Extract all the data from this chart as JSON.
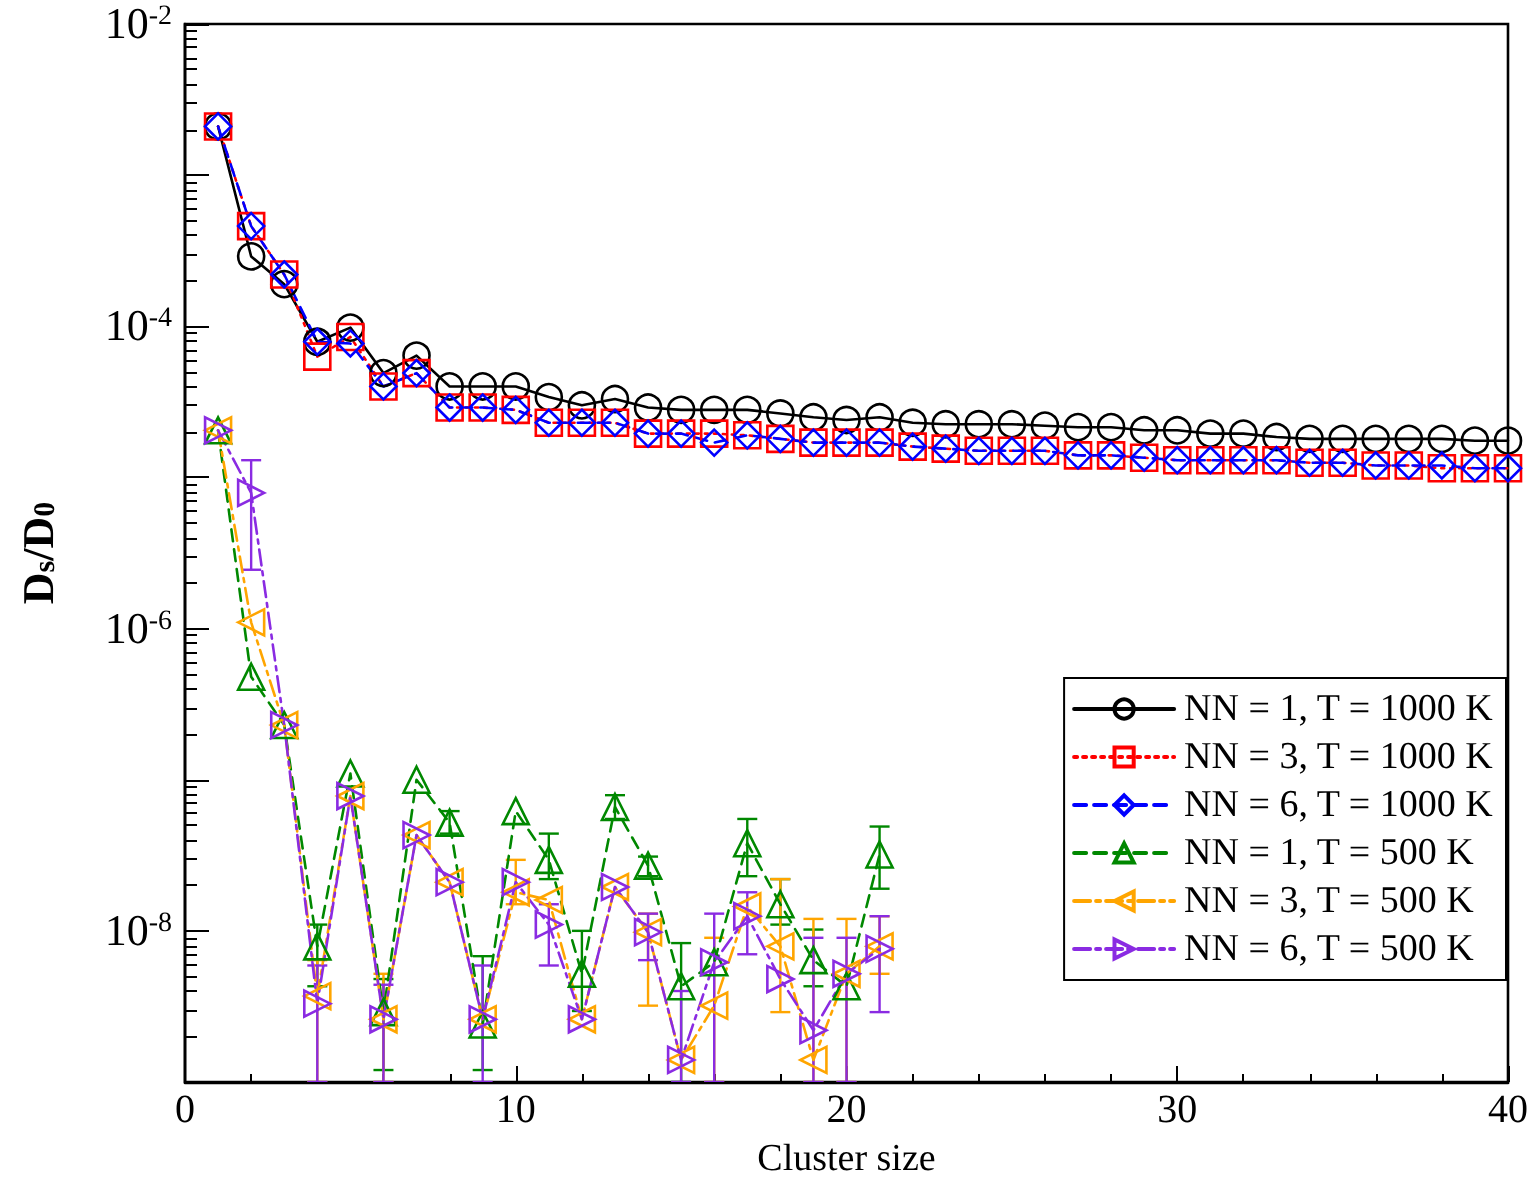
{
  "chart_data": {
    "type": "line",
    "xlabel": "Cluster size",
    "ylabel": "D$_{s}$/D$_{0}$",
    "x": [
      1,
      2,
      3,
      4,
      5,
      6,
      7,
      8,
      9,
      10,
      11,
      12,
      13,
      14,
      15,
      16,
      17,
      18,
      19,
      20,
      21,
      22,
      23,
      24,
      25,
      26,
      27,
      28,
      29,
      30,
      31,
      32,
      33,
      34,
      35,
      36,
      37,
      38,
      39,
      40
    ],
    "xlim": [
      0,
      40
    ],
    "xticks": [
      0,
      10,
      20,
      30,
      40
    ],
    "ylim": [
      1e-09,
      0.01
    ],
    "log": "y",
    "yticks": [
      {
        "value": 0.01,
        "label": "10$^{-2}$"
      },
      {
        "value": 0.001,
        "label": null
      },
      {
        "value": 0.0001,
        "label": "10$^{-4}$"
      },
      {
        "value": 1e-05,
        "label": null
      },
      {
        "value": 1e-06,
        "label": "10$^{-6}$"
      },
      {
        "value": 1e-07,
        "label": null
      },
      {
        "value": 1e-08,
        "label": "10$^{-8}$"
      },
      {
        "value": 1e-09,
        "label": null
      }
    ],
    "grid": false,
    "legend": "bottom right",
    "series": [
      {
        "name": "NN = 1, T = 1000 K",
        "color": "#000000",
        "marker": "circle",
        "line_style": "solid",
        "values": [
          0.0021,
          0.00029,
          0.00019,
          7.9e-05,
          9.8e-05,
          4.9e-05,
          6.4e-05,
          4e-05,
          4e-05,
          4e-05,
          3.4e-05,
          3e-05,
          3.3e-05,
          2.9e-05,
          2.8e-05,
          2.8e-05,
          2.8e-05,
          2.65e-05,
          2.5e-05,
          2.4e-05,
          2.5e-05,
          2.3e-05,
          2.25e-05,
          2.25e-05,
          2.25e-05,
          2.2e-05,
          2.15e-05,
          2.15e-05,
          2.05e-05,
          2.05e-05,
          1.95e-05,
          1.95e-05,
          1.85e-05,
          1.8e-05,
          1.8e-05,
          1.8e-05,
          1.8e-05,
          1.8e-05,
          1.75e-05,
          1.75e-05
        ]
      },
      {
        "name": "NN = 3, T = 1000 K",
        "color": "#ff0000",
        "marker": "square",
        "line_style": "dotted",
        "values": [
          0.0021,
          0.00046,
          0.00022,
          6.3e-05,
          8.5e-05,
          4e-05,
          4.9e-05,
          2.9e-05,
          2.9e-05,
          2.8e-05,
          2.3e-05,
          2.3e-05,
          2.3e-05,
          1.95e-05,
          1.95e-05,
          1.95e-05,
          1.9e-05,
          1.8e-05,
          1.7e-05,
          1.7e-05,
          1.7e-05,
          1.6e-05,
          1.55e-05,
          1.5e-05,
          1.5e-05,
          1.5e-05,
          1.4e-05,
          1.4e-05,
          1.35e-05,
          1.3e-05,
          1.3e-05,
          1.3e-05,
          1.3e-05,
          1.25e-05,
          1.25e-05,
          1.2e-05,
          1.2e-05,
          1.15e-05,
          1.15e-05,
          1.15e-05
        ]
      },
      {
        "name": "NN = 6, T = 1000 K",
        "color": "#0000ff",
        "marker": "diamond",
        "line_style": "dashed",
        "values": [
          0.0021,
          0.00046,
          0.00022,
          7.9e-05,
          7.7e-05,
          4e-05,
          4.9e-05,
          2.9e-05,
          2.9e-05,
          2.8e-05,
          2.3e-05,
          2.3e-05,
          2.3e-05,
          1.95e-05,
          1.95e-05,
          1.7e-05,
          1.9e-05,
          1.8e-05,
          1.7e-05,
          1.7e-05,
          1.7e-05,
          1.6e-05,
          1.55e-05,
          1.5e-05,
          1.5e-05,
          1.5e-05,
          1.4e-05,
          1.4e-05,
          1.35e-05,
          1.3e-05,
          1.3e-05,
          1.3e-05,
          1.3e-05,
          1.25e-05,
          1.25e-05,
          1.2e-05,
          1.2e-05,
          1.2e-05,
          1.15e-05,
          1.15e-05
        ]
      },
      {
        "name": "NN = 1, T = 500 K",
        "color": "#008800",
        "marker": "triangle",
        "line_style": "dashed",
        "x": [
          1,
          2,
          3,
          4,
          5,
          6,
          7,
          8,
          9,
          10,
          11,
          12,
          13,
          14,
          15,
          16,
          17,
          18,
          19,
          20,
          21
        ],
        "values": [
          2.05e-05,
          4.8e-07,
          2.3e-07,
          7.9e-09,
          1.1e-07,
          2.9e-09,
          1e-07,
          5.2e-08,
          2.4e-09,
          6.2e-08,
          2.95e-08,
          5.2e-09,
          6.6e-08,
          2.7e-08,
          4.3e-09,
          6.2e-09,
          3.8e-08,
          1.5e-08,
          6.4e-09,
          4.3e-09,
          3.2e-08
        ],
        "errors": [
          null,
          null,
          null,
          [
            4.3e-09,
            1.1e-08
          ],
          null,
          [
            1.2e-09,
            4.8e-09
          ],
          null,
          [
            4.4e-08,
            6.2e-08
          ],
          [
            1.2e-09,
            6.8e-09
          ],
          null,
          [
            2.2e-08,
            4.4e-08
          ],
          [
            2.95e-09,
            1e-08
          ],
          [
            5.5e-08,
            7.9e-08
          ],
          [
            2.3e-08,
            3.1e-08
          ],
          [
            1e-09,
            8.3e-09
          ],
          null,
          [
            2.3e-08,
            5.5e-08
          ],
          [
            1.1e-08,
            2.2e-08
          ],
          [
            4.3e-09,
            1.02e-08
          ],
          null,
          [
            1.9e-08,
            4.9e-08
          ]
        ]
      },
      {
        "name": "NN = 3, T = 500 K",
        "color": "#ffa500",
        "marker": "triangle-left",
        "line_style": "dashdot",
        "x": [
          1,
          2,
          3,
          4,
          5,
          6,
          7,
          8,
          9,
          10,
          11,
          12,
          13,
          14,
          15,
          16,
          17,
          18,
          19,
          20,
          21
        ],
        "values": [
          2.05e-05,
          1.1e-06,
          2.3e-07,
          3.7e-09,
          7.8e-08,
          2.6e-09,
          4.3e-08,
          2.1e-08,
          2.6e-09,
          1.8e-08,
          1.6e-08,
          2.6e-09,
          1.95e-08,
          9.8e-09,
          1.4e-09,
          3.2e-09,
          1.45e-08,
          7.9e-09,
          1.4e-09,
          5.2e-09,
          7.9e-09
        ],
        "errors": [
          null,
          null,
          null,
          [
            1e-09,
            6.4e-09
          ],
          null,
          [
            1e-09,
            5.2e-09
          ],
          null,
          null,
          null,
          [
            1.5e-08,
            2.95e-08
          ],
          null,
          null,
          null,
          [
            3.2e-09,
            1.3e-08
          ],
          null,
          [
            1e-09,
            9e-09
          ],
          null,
          [
            2.9e-09,
            2.2e-08
          ],
          [
            1e-09,
            1.2e-08
          ],
          [
            1e-09,
            1.2e-08
          ],
          [
            5.2e-09,
            1.25e-08
          ]
        ]
      },
      {
        "name": "NN = 6, T = 500 K",
        "color": "#8a2be2",
        "marker": "triangle-right",
        "line_style": "dashdot",
        "x": [
          1,
          2,
          3,
          4,
          5,
          6,
          7,
          8,
          9,
          10,
          11,
          12,
          13,
          14,
          15,
          16,
          17,
          18,
          19,
          20,
          21
        ],
        "values": [
          2.05e-05,
          7.9e-06,
          2.3e-07,
          3.3e-09,
          7.8e-08,
          2.6e-09,
          4.3e-08,
          2.1e-08,
          2.6e-09,
          2.1e-08,
          1.1e-08,
          2.6e-09,
          1.95e-08,
          9.8e-09,
          1.4e-09,
          6.2e-09,
          1.25e-08,
          4.8e-09,
          2.2e-09,
          5.2e-09,
          7.6e-09
        ],
        "errors": [
          null,
          [
            2.45e-06,
            1.3e-05
          ],
          null,
          [
            1e-09,
            5.9e-09
          ],
          null,
          [
            1e-09,
            4.4e-09
          ],
          null,
          null,
          [
            1e-09,
            5.9e-09
          ],
          null,
          [
            5.9e-09,
            1.5e-08
          ],
          null,
          null,
          [
            6.4e-09,
            1.3e-08
          ],
          [
            1e-09,
            4e-09
          ],
          [
            1e-09,
            1.3e-08
          ],
          [
            7e-09,
            1.8e-08
          ],
          null,
          [
            1e-09,
            9e-09
          ],
          [
            1e-09,
            9e-09
          ],
          [
            2.9e-09,
            1.25e-08
          ]
        ]
      }
    ]
  }
}
